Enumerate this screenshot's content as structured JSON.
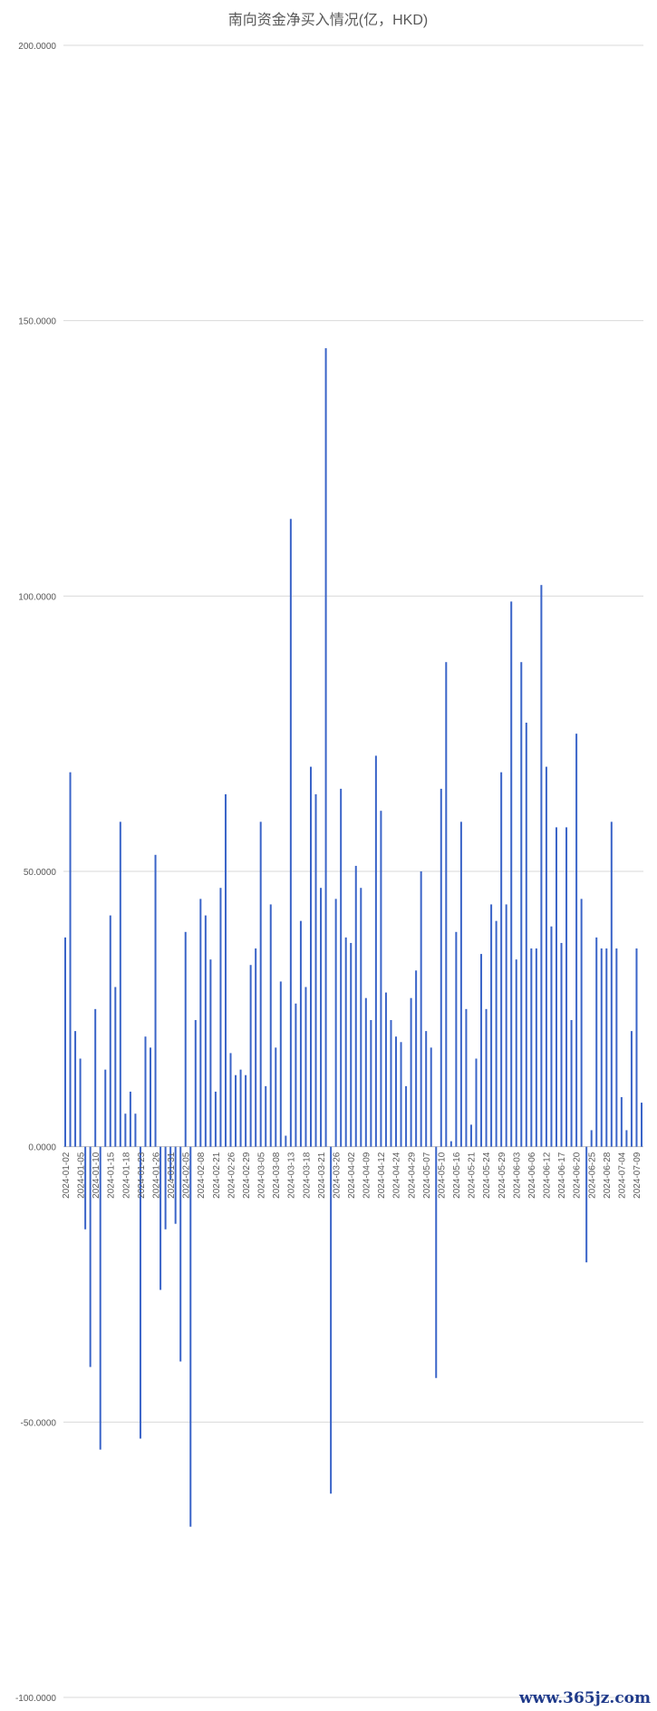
{
  "chart_data": {
    "type": "bar",
    "title": "南向资金净买入情况(亿，HKD)",
    "xlabel": "",
    "ylabel": "",
    "ylim": [
      -100,
      200
    ],
    "yticks": [
      "-100.0000",
      "-50.0000",
      "0.0000",
      "50.0000",
      "100.0000",
      "150.0000",
      "200.0000"
    ],
    "grid": true,
    "legend": "none",
    "bar_color": "#3a64c8",
    "x_tick_labels": [
      "2024-01-02",
      "2024-01-05",
      "2024-01-10",
      "2024-01-15",
      "2024-01-18",
      "2024-01-23",
      "2024-01-26",
      "2024-01-31",
      "2024-02-05",
      "2024-02-08",
      "2024-02-21",
      "2024-02-26",
      "2024-02-29",
      "2024-03-05",
      "2024-03-08",
      "2024-03-13",
      "2024-03-18",
      "2024-03-21",
      "2024-03-26",
      "2024-04-02",
      "2024-04-09",
      "2024-04-12",
      "2024-04-24",
      "2024-04-29",
      "2024-05-07",
      "2024-05-10",
      "2024-05-16",
      "2024-05-21",
      "2024-05-24",
      "2024-05-29",
      "2024-06-03",
      "2024-06-06",
      "2024-06-12",
      "2024-06-17",
      "2024-06-20",
      "2024-06-25",
      "2024-06-28",
      "2024-07-04",
      "2024-07-09"
    ],
    "values": [
      38,
      68,
      21,
      16,
      -15,
      -40,
      25,
      -55,
      14,
      42,
      29,
      59,
      6,
      10,
      6,
      -53,
      20,
      18,
      53,
      -26,
      -15,
      -6,
      -14,
      -39,
      39,
      -69,
      23,
      45,
      42,
      34,
      10,
      47,
      64,
      17,
      13,
      14,
      13,
      33,
      36,
      59,
      11,
      44,
      18,
      30,
      2,
      114,
      26,
      41,
      29,
      69,
      64,
      47,
      145,
      -63,
      45,
      65,
      38,
      37,
      51,
      47,
      27,
      23,
      71,
      61,
      28,
      23,
      20,
      19,
      11,
      27,
      32,
      50,
      21,
      18,
      -42,
      65,
      88,
      1,
      39,
      59,
      25,
      4,
      16,
      35,
      25,
      44,
      41,
      68,
      44,
      99,
      34,
      88,
      77,
      36,
      36,
      102,
      69,
      40,
      58,
      37,
      58,
      23,
      75,
      45,
      -21,
      3,
      38,
      36,
      36,
      59,
      36,
      9,
      3,
      21,
      36,
      8
    ]
  },
  "watermark": "www.365jz.com"
}
